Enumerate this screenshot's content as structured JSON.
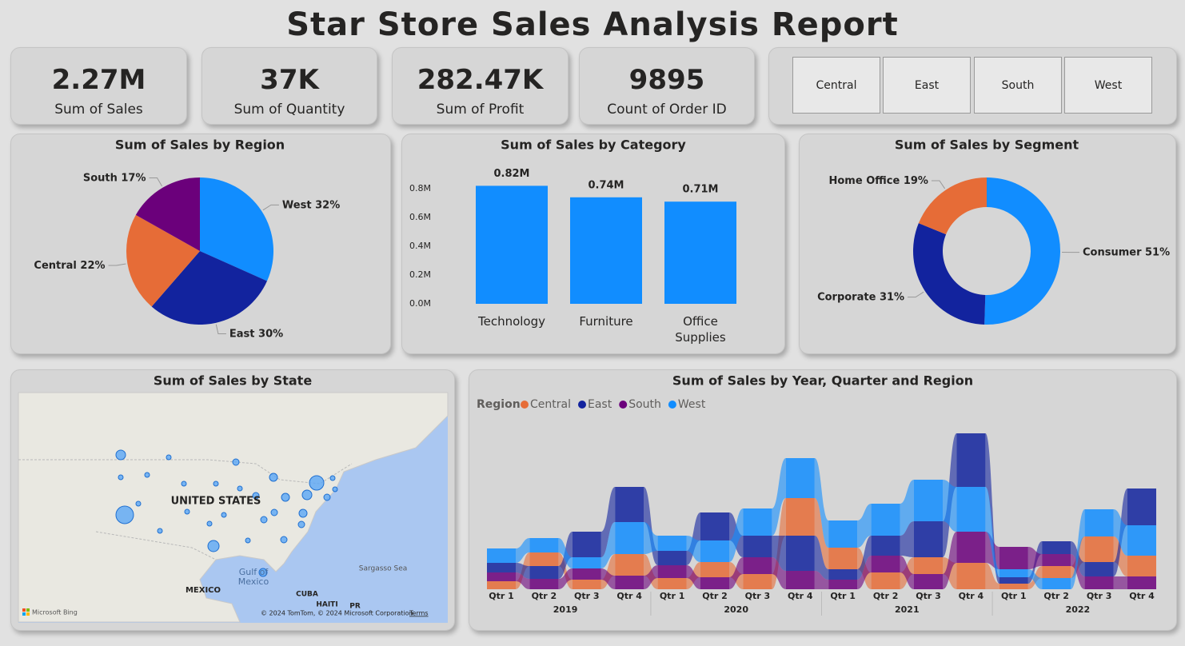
{
  "header": {
    "title": "Star Store Sales Analysis Report"
  },
  "kpis": [
    {
      "value": "2.27M",
      "label": "Sum of Sales"
    },
    {
      "value": "37K",
      "label": "Sum of Quantity"
    },
    {
      "value": "282.47K",
      "label": "Sum of Profit"
    },
    {
      "value": "9895",
      "label": "Count of Order ID"
    }
  ],
  "slicer": {
    "options": [
      "Central",
      "East",
      "South",
      "West"
    ]
  },
  "map": {
    "title": "Sum of Sales by State",
    "labels": [
      "UNITED STATES",
      "Gulf of Mexico",
      "Sargasso Sea",
      "MEXICO",
      "CUBA",
      "HAITI",
      "PR"
    ],
    "brand": "Microsoft Bing",
    "attribution": "© 2024 TomTom, © 2024 Microsoft Corporation",
    "terms": "Terms"
  },
  "chart_data": [
    {
      "type": "pie",
      "title": "Sum of Sales by Region",
      "categories": [
        "West",
        "East",
        "Central",
        "South"
      ],
      "values": [
        32,
        30,
        22,
        17
      ],
      "value_labels": [
        "32%",
        "30%",
        "22%",
        "17%"
      ],
      "colors": [
        "#118dff",
        "#12239e",
        "#e66c37",
        "#6b007b"
      ]
    },
    {
      "type": "bar",
      "title": "Sum of Sales by Category",
      "categories": [
        "Technology",
        "Furniture",
        "Office Supplies"
      ],
      "values": [
        820000,
        740000,
        710000
      ],
      "value_labels": [
        "0.82M",
        "0.74M",
        "0.71M"
      ],
      "color": "#118dff",
      "ylim": [
        0,
        860000
      ],
      "yticks": [
        {
          "value": 0,
          "label": "0.0M"
        },
        {
          "value": 200000,
          "label": "0.2M"
        },
        {
          "value": 400000,
          "label": "0.4M"
        },
        {
          "value": 600000,
          "label": "0.6M"
        },
        {
          "value": 800000,
          "label": "0.8M"
        }
      ]
    },
    {
      "type": "donut",
      "title": "Sum of Sales by Segment",
      "categories": [
        "Consumer",
        "Corporate",
        "Home Office"
      ],
      "values": [
        51,
        31,
        19
      ],
      "value_labels": [
        "51%",
        "31%",
        "19%"
      ],
      "colors": [
        "#118dff",
        "#12239e",
        "#e66c37"
      ]
    },
    {
      "type": "ribbon",
      "title": "Sum of Sales by Year, Quarter and Region",
      "legend_title": "Region",
      "categories": [
        "Qtr 1",
        "Qtr 2",
        "Qtr 3",
        "Qtr 4",
        "Qtr 1",
        "Qtr 2",
        "Qtr 3",
        "Qtr 4",
        "Qtr 1",
        "Qtr 2",
        "Qtr 3",
        "Qtr 4",
        "Qtr 1",
        "Qtr 2",
        "Qtr 3",
        "Qtr 4"
      ],
      "groups": [
        "2019",
        "2020",
        "2021",
        "2022"
      ],
      "series": [
        {
          "name": "Central",
          "color": "#e66c37",
          "values": [
            14000,
            23800,
            16800,
            37800,
            19600,
            26600,
            26600,
            65800,
            37800,
            29400,
            29400,
            46200,
            9800,
            21000,
            44800,
            36400
          ]
        },
        {
          "name": "East",
          "color": "#12239e",
          "values": [
            16800,
            22400,
            44800,
            61600,
            25200,
            49000,
            37800,
            61600,
            18200,
            35000,
            63000,
            93800,
            11200,
            22400,
            25200,
            64400
          ]
        },
        {
          "name": "South",
          "color": "#6b007b",
          "values": [
            15400,
            18200,
            19600,
            23800,
            22400,
            21000,
            29400,
            32200,
            16800,
            29400,
            26600,
            54600,
            39200,
            21000,
            22400,
            22400
          ]
        },
        {
          "name": "West",
          "color": "#118dff",
          "values": [
            25200,
            25200,
            19600,
            56000,
            26600,
            37800,
            47600,
            70000,
            47600,
            56000,
            72800,
            78400,
            14000,
            19600,
            47600,
            53200
          ]
        }
      ]
    }
  ]
}
